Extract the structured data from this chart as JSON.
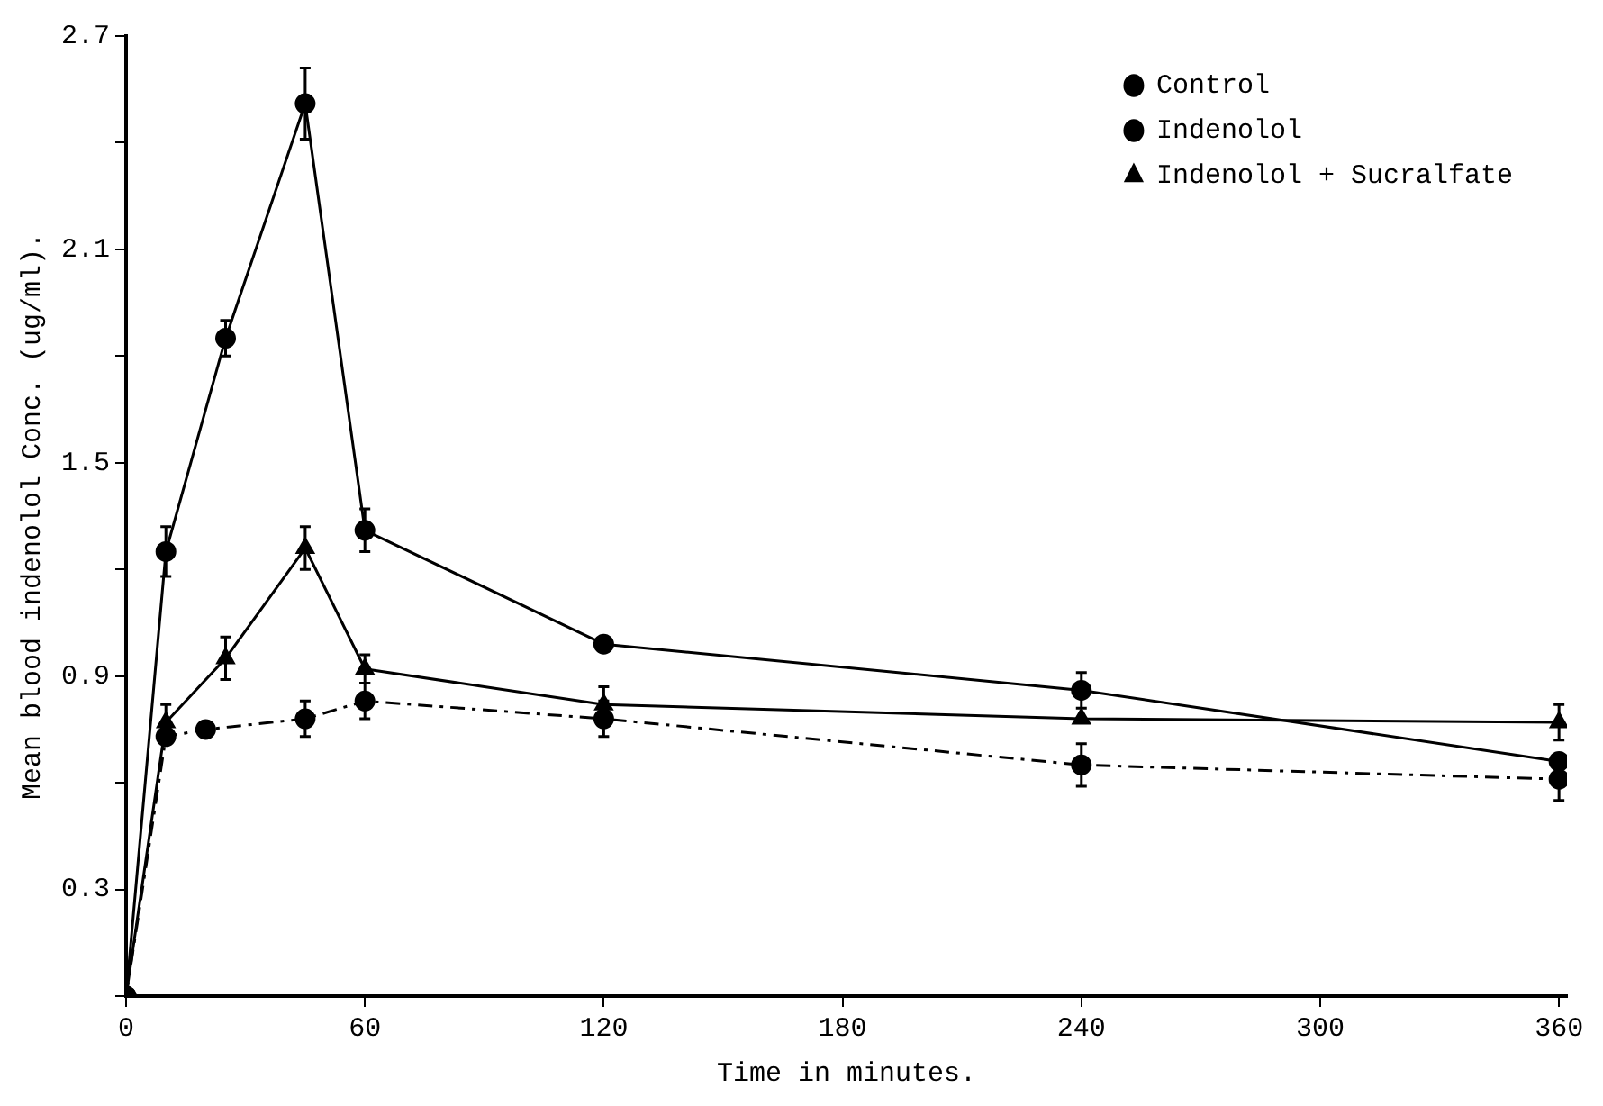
{
  "chart_data": {
    "type": "line",
    "xlabel": "Time in minutes.",
    "ylabel": "Mean blood indenolol Conc. (ug/ml).",
    "xlim": [
      0,
      362
    ],
    "xticks": [
      0,
      60,
      120,
      180,
      240,
      300,
      360
    ],
    "ylim": [
      0,
      2.7
    ],
    "yticks": [
      {
        "value": 0,
        "label": null
      },
      0.3,
      {
        "value": 0.6,
        "label": null
      },
      0.9,
      {
        "value": 1.2,
        "label": null
      },
      1.5,
      {
        "value": 1.8,
        "label": null
      },
      2.1,
      {
        "value": 2.4,
        "label": null
      },
      2.7
    ],
    "grid": false,
    "legend": "top right",
    "series": [
      {
        "name": "Control",
        "color": "#000000",
        "marker": "circle",
        "line_style": "solid",
        "x": [
          0,
          10,
          25,
          45,
          60,
          120,
          240,
          360
        ],
        "values": [
          0,
          1.25,
          1.85,
          2.51,
          1.31,
          0.99,
          0.86,
          0.66
        ],
        "errors": [
          null,
          0.07,
          0.05,
          0.1,
          0.06,
          null,
          0.05,
          null
        ]
      },
      {
        "name": "Indenolol",
        "color": "#000000",
        "marker": "circle",
        "line_style": "dashed",
        "x": [
          0,
          10,
          20,
          45,
          60,
          120,
          240,
          360
        ],
        "values": [
          0,
          0.73,
          0.75,
          0.78,
          0.83,
          0.78,
          0.65,
          0.61
        ],
        "errors": [
          null,
          null,
          null,
          0.05,
          0.05,
          0.05,
          0.06,
          0.06
        ]
      },
      {
        "name": "Indenolol + Sucralfate",
        "color": "#000000",
        "marker": "triangle",
        "line_style": "solid",
        "x": [
          0,
          10,
          25,
          45,
          60,
          120,
          240,
          360
        ],
        "values": [
          0,
          0.77,
          0.95,
          1.26,
          0.92,
          0.82,
          0.78,
          0.77
        ],
        "errors": [
          null,
          0.05,
          0.06,
          0.06,
          0.04,
          0.05,
          null,
          0.05
        ]
      }
    ]
  }
}
